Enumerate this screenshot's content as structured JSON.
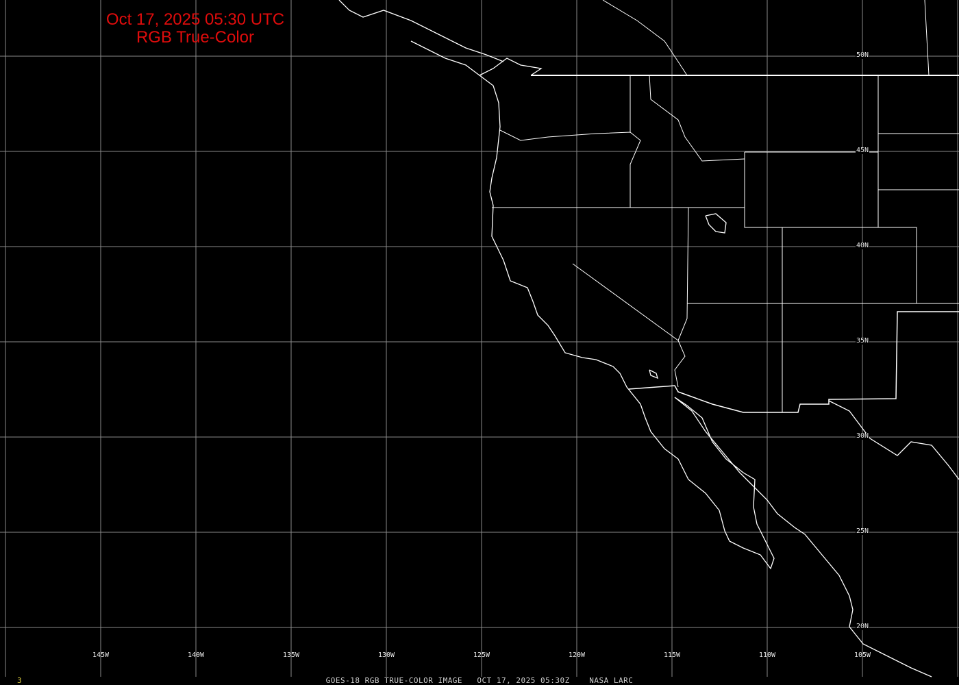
{
  "title": {
    "line1": "Oct 17, 2025 05:30 UTC",
    "line2": "RGB True-Color"
  },
  "grid": {
    "longitudes": [
      "145W",
      "140W",
      "135W",
      "130W",
      "125W",
      "120W",
      "115W",
      "110W",
      "105W"
    ],
    "latitudes": [
      "50N",
      "45N",
      "40N",
      "35N",
      "30N",
      "25N",
      "20N"
    ]
  },
  "footer": {
    "frame_number": "3",
    "caption": "GOES-18 RGB TRUE-COLOR IMAGE   OCT 17, 2025 05:30Z    NASA LARC"
  },
  "colors": {
    "title": "#e00c0c",
    "grid": "#8a8a8a",
    "boundaries": "#ffffff",
    "frame_number": "#e0d040",
    "background": "#000000"
  }
}
